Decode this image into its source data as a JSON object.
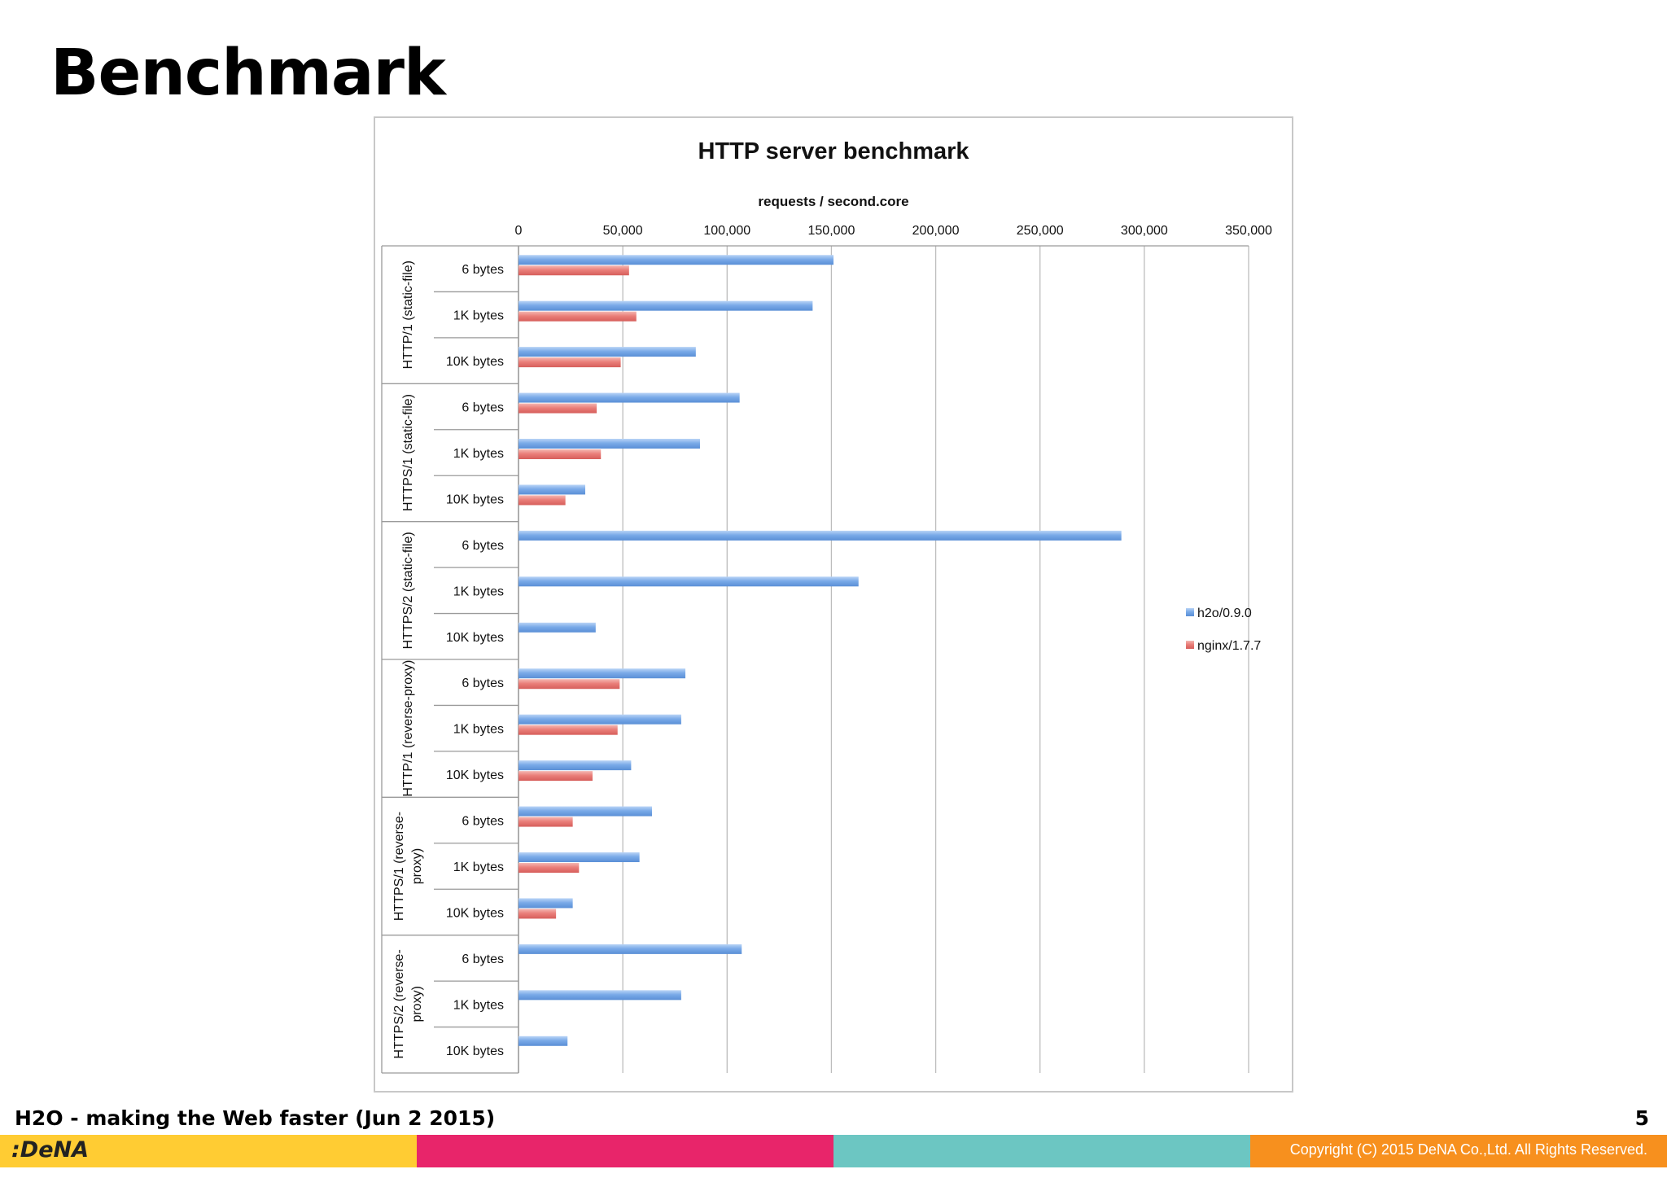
{
  "slide": {
    "title": "Benchmark",
    "footer": "H2O - making the Web faster (Jun 2 2015)",
    "page_number": "5",
    "logo": ":DeNA",
    "copyright": "Copyright (C) 2015 DeNA Co.,Ltd. All Rights Reserved.",
    "colors": {
      "bar1": "#ffcc33",
      "bar2": "#e8256a",
      "bar3": "#6cc6c2",
      "bar4": "#f7901e"
    }
  },
  "chart_data": {
    "type": "bar",
    "orientation": "horizontal",
    "title": "HTTP server benchmark",
    "xlabel": "requests / second.core",
    "xlim": [
      0,
      350000
    ],
    "xticks": [
      0,
      50000,
      100000,
      150000,
      200000,
      250000,
      300000,
      350000
    ],
    "xtick_labels": [
      "0",
      "50,000",
      "100,000",
      "150,000",
      "200,000",
      "250,000",
      "300,000",
      "350,000"
    ],
    "grid": true,
    "legend_position": "right",
    "groups": [
      {
        "label": "HTTP/1 (static-file)",
        "categories": [
          "6 bytes",
          "1K bytes",
          "10K bytes"
        ]
      },
      {
        "label": "HTTPS/1 (static-file)",
        "categories": [
          "6 bytes",
          "1K bytes",
          "10K bytes"
        ]
      },
      {
        "label": "HTTPS/2 (static-file)",
        "categories": [
          "6 bytes",
          "1K bytes",
          "10K bytes"
        ]
      },
      {
        "label": "HTTP/1 (reverse-proxy)",
        "categories": [
          "6 bytes",
          "1K bytes",
          "10K bytes"
        ]
      },
      {
        "label": "HTTPS/1 (reverse-proxy)",
        "categories": [
          "6 bytes",
          "1K bytes",
          "10K bytes"
        ]
      },
      {
        "label": "HTTPS/2 (reverse-proxy)",
        "categories": [
          "6 bytes",
          "1K bytes",
          "10K bytes"
        ]
      }
    ],
    "series": [
      {
        "name": "h2o/0.9.0",
        "color": "#6a9fe0",
        "values": [
          151000,
          141000,
          85000,
          106000,
          87000,
          32000,
          289000,
          163000,
          37000,
          80000,
          78000,
          54000,
          64000,
          58000,
          26000,
          107000,
          78000,
          23500
        ]
      },
      {
        "name": "nginx/1.7.7",
        "color": "#e46c6c",
        "values": [
          53000,
          56500,
          49000,
          37500,
          39500,
          22500,
          null,
          null,
          null,
          48500,
          47500,
          35500,
          26000,
          29000,
          18000,
          null,
          null,
          null
        ]
      }
    ]
  }
}
